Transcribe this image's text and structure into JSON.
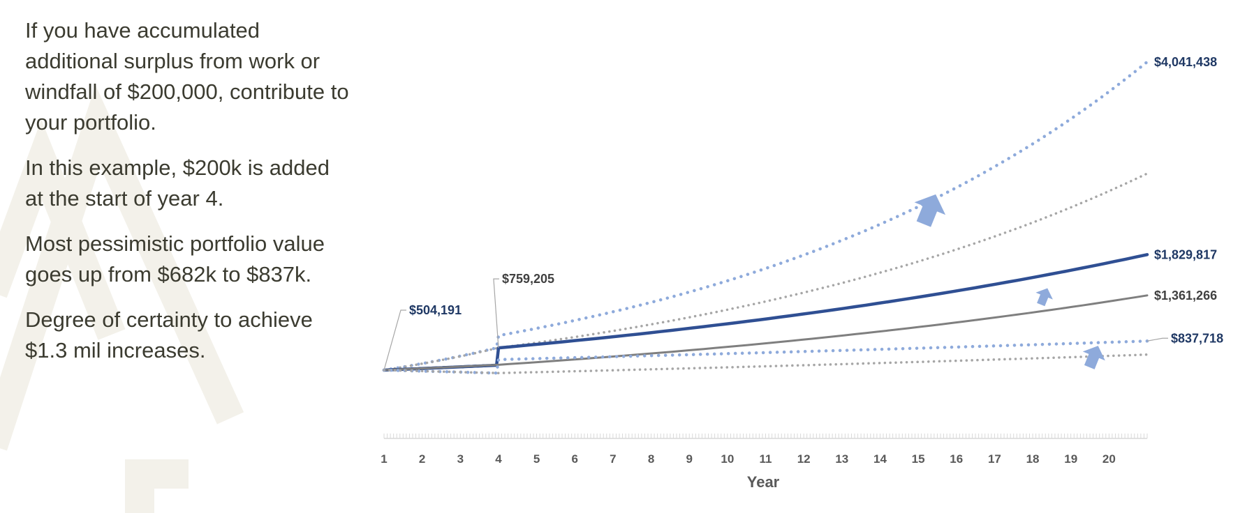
{
  "paragraphs": [
    "If you have accumulated additional surplus from work or windfall of $200,000, contribute to your portfolio.",
    "In this example, $200k is added at the start of year 4.",
    "Most pessimistic portfolio value goes up from $682k to $837k.",
    "Degree of certainty to achieve $1.3 mil increases."
  ],
  "colors": {
    "dark_blue": "#2f4f93",
    "light_blue": "#8eaadb",
    "gray": "#7f7f7f",
    "light_gray": "#a6a6a6",
    "label_blue": "#1f3864",
    "label_gray": "#404040",
    "arrow": "#8eaadb",
    "logo": "#f3f1ea"
  },
  "chart_data": {
    "type": "line",
    "x": [
      1,
      4,
      21
    ],
    "xlabel": "Year",
    "x_tick_labels": [
      "1",
      "2",
      "3",
      "4",
      "5",
      "6",
      "7",
      "8",
      "9",
      "10",
      "11",
      "12",
      "13",
      "14",
      "15",
      "16",
      "17",
      "18",
      "19",
      "20"
    ],
    "xlim": [
      1,
      21
    ],
    "ylim": [
      0,
      4400000
    ],
    "y_axis_visible": false,
    "grid": false,
    "legend": "none",
    "series": [
      {
        "style": "optimistic-new",
        "color": "#8eaadb",
        "dash": "dotted",
        "width": 4.5,
        "points": [
          [
            1,
            504191
          ],
          [
            3.95,
            759205
          ],
          [
            4,
            900000
          ],
          [
            21,
            4041438
          ]
        ]
      },
      {
        "style": "optimistic-original",
        "color": "#a6a6a6",
        "dash": "dotted",
        "width": 3.5,
        "points": [
          [
            1,
            504191
          ],
          [
            4,
            759205
          ],
          [
            21,
            2760000
          ]
        ]
      },
      {
        "style": "median-new",
        "color": "#2f4f93",
        "dash": "solid",
        "width": 4.5,
        "points": [
          [
            1,
            504191
          ],
          [
            3.95,
            560000
          ],
          [
            4,
            759205
          ],
          [
            21,
            1829817
          ]
        ]
      },
      {
        "style": "median-original",
        "color": "#7f7f7f",
        "dash": "solid",
        "width": 3,
        "points": [
          [
            1,
            504191
          ],
          [
            4,
            565000
          ],
          [
            21,
            1361266
          ]
        ]
      },
      {
        "style": "pessimistic-new",
        "color": "#8eaadb",
        "dash": "dotted",
        "width": 4.5,
        "points": [
          [
            1,
            504191
          ],
          [
            3.95,
            470000
          ],
          [
            4,
            625000
          ],
          [
            21,
            837718
          ]
        ]
      },
      {
        "style": "pessimistic-original",
        "color": "#a6a6a6",
        "dash": "dotted",
        "width": 3.5,
        "points": [
          [
            1,
            504191
          ],
          [
            4,
            470000
          ],
          [
            21,
            682000
          ]
        ]
      }
    ],
    "annotations": [
      {
        "text": "$504,191",
        "x": 1,
        "y": 504191,
        "color": "#1f3864"
      },
      {
        "text": "$759,205",
        "x": 4,
        "y": 759205,
        "color": "#404040"
      },
      {
        "text": "$4,041,438",
        "x": 21,
        "y": 4041438,
        "color": "#1f3864"
      },
      {
        "text": "$1,829,817",
        "x": 21,
        "y": 1829817,
        "color": "#1f3864"
      },
      {
        "text": "$1,361,266",
        "x": 21,
        "y": 1361266,
        "color": "#404040"
      },
      {
        "text": "$837,718",
        "x": 21,
        "y": 837718,
        "color": "#1f3864"
      }
    ],
    "arrows": [
      {
        "direction": "up",
        "size": "large",
        "x": 15.3,
        "y": 2350000
      },
      {
        "direction": "up",
        "size": "small",
        "x": 18.3,
        "y": 1350000
      },
      {
        "direction": "up",
        "size": "medium",
        "x": 19.6,
        "y": 660000
      }
    ]
  }
}
